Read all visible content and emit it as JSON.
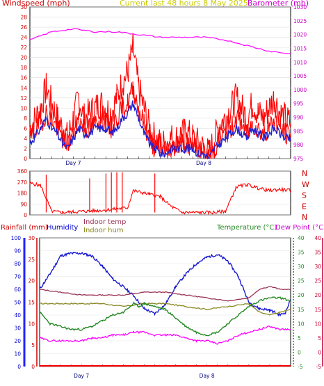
{
  "header": {
    "left_title": "Windspeed (mph)",
    "center_title": "Current last 48 hours 8 May 2025",
    "right_title": "Barometer (mb)"
  },
  "colors": {
    "wind": "#ff0000",
    "gust": "#ff0000",
    "wind_avg": "#2020d0",
    "barometer": "#ff00ff",
    "direction": "#ff0000",
    "humidity": "#1a1ad0",
    "indoor_temp": "#993355",
    "indoor_hum": "#888822",
    "temperature": "#228822",
    "dew_point": "#ff00ff",
    "rainfall": "#ff0000",
    "title": "#cccc00",
    "axis_rain": "#cc0000",
    "axis_humidity": "#0000cc",
    "axis_temp": "#228822",
    "axis_dew": "#cc0033"
  },
  "chart_data": [
    {
      "type": "line",
      "name": "wind",
      "title": "Current last 48 hours 8 May 2025",
      "ylabel_left": "Windspeed (mph)",
      "ylabel_right": "Barometer (mb)",
      "left_ticks": [
        0,
        2,
        4,
        6,
        8,
        10,
        12,
        14,
        16,
        18,
        20,
        22,
        24,
        26,
        28,
        30
      ],
      "right_ticks": [
        975,
        980,
        985,
        990,
        995,
        1000,
        1005,
        1010,
        1015,
        1020,
        1025,
        1030
      ],
      "ylim_left": [
        0,
        30
      ],
      "ylim_right": [
        975,
        1030
      ],
      "x_labels": [
        "Day 7",
        "Day 8"
      ],
      "x_label_positions_hours": [
        8,
        32
      ],
      "x_hours": 48,
      "series": [
        {
          "key": "gust",
          "hours": [
            0,
            2,
            3,
            4,
            5,
            6,
            7,
            8,
            9,
            10,
            11,
            12,
            13,
            14,
            15,
            16,
            17,
            18,
            19,
            20,
            21,
            22,
            23,
            24,
            25,
            26,
            27,
            28,
            29,
            30,
            31,
            32,
            33,
            34,
            35,
            36,
            37,
            38,
            39,
            40,
            41,
            42,
            43,
            44,
            45,
            46,
            47,
            48
          ],
          "values": [
            6,
            10,
            14,
            11,
            8,
            6,
            4,
            8,
            12,
            8,
            9,
            10,
            11,
            10,
            9,
            12,
            15,
            17,
            22,
            14,
            10,
            6,
            4,
            3,
            3,
            4,
            4,
            5,
            5,
            4,
            3,
            2,
            1,
            4,
            7,
            8,
            10,
            12,
            10,
            8,
            11,
            9,
            8,
            10,
            12,
            9,
            8,
            7
          ]
        },
        {
          "key": "wind",
          "hours": [
            0,
            2,
            3,
            4,
            5,
            6,
            7,
            8,
            9,
            10,
            11,
            12,
            13,
            14,
            15,
            16,
            17,
            18,
            19,
            20,
            21,
            22,
            23,
            24,
            25,
            26,
            27,
            28,
            29,
            30,
            31,
            32,
            33,
            34,
            35,
            36,
            37,
            38,
            39,
            40,
            41,
            42,
            43,
            44,
            45,
            46,
            47,
            48
          ],
          "values": [
            4,
            7,
            9,
            8,
            6,
            4,
            3,
            5,
            8,
            6,
            6,
            7,
            8,
            7,
            6,
            8,
            10,
            11,
            14,
            10,
            7,
            4,
            2,
            2,
            2,
            2,
            3,
            3,
            3,
            2,
            2,
            1,
            0,
            2,
            4,
            5,
            6,
            8,
            7,
            5,
            7,
            6,
            5,
            6,
            8,
            6,
            5,
            5
          ]
        },
        {
          "key": "wind_avg",
          "hours": [
            0,
            2,
            3,
            4,
            5,
            6,
            7,
            8,
            9,
            10,
            11,
            12,
            13,
            14,
            15,
            16,
            17,
            18,
            19,
            20,
            21,
            22,
            23,
            24,
            25,
            26,
            27,
            28,
            29,
            30,
            31,
            32,
            33,
            34,
            35,
            36,
            37,
            38,
            39,
            40,
            41,
            42,
            43,
            44,
            45,
            46,
            47,
            48
          ],
          "values": [
            3,
            6,
            8,
            6,
            5,
            3,
            2,
            4,
            6,
            5,
            5,
            6,
            6,
            6,
            5,
            6,
            8,
            9,
            11,
            8,
            5,
            3,
            2,
            1,
            1,
            2,
            2,
            2,
            2,
            2,
            1,
            1,
            0,
            2,
            3,
            4,
            5,
            6,
            5,
            4,
            6,
            5,
            4,
            5,
            6,
            5,
            4,
            4
          ]
        },
        {
          "key": "barometer",
          "axis": "right",
          "hours": [
            0,
            4,
            8,
            12,
            16,
            20,
            24,
            28,
            32,
            36,
            40,
            44,
            48
          ],
          "values": [
            1018,
            1021,
            1022,
            1021,
            1021,
            1020,
            1019,
            1019,
            1019,
            1018,
            1016,
            1014,
            1013
          ]
        }
      ]
    },
    {
      "type": "line",
      "name": "direction",
      "left_ticks": [
        0,
        90,
        180,
        270,
        360
      ],
      "right_ticks": [
        "N",
        "W",
        "S",
        "E",
        "N"
      ],
      "ylim": [
        0,
        360
      ],
      "hours": [
        0,
        2,
        4,
        6,
        8,
        10,
        12,
        14,
        16,
        18,
        19,
        20,
        22,
        24,
        26,
        28,
        30,
        32,
        34,
        36,
        38,
        40,
        42,
        44,
        46,
        48
      ],
      "values": [
        260,
        240,
        30,
        20,
        25,
        30,
        35,
        40,
        50,
        60,
        200,
        190,
        170,
        150,
        70,
        20,
        20,
        20,
        20,
        30,
        230,
        250,
        220,
        200,
        210,
        200
      ],
      "spikes_hours": [
        3,
        11,
        14,
        15,
        16,
        17,
        23
      ],
      "spikes_values": [
        330,
        300,
        340,
        350,
        350,
        350,
        340
      ]
    },
    {
      "type": "line",
      "name": "climate",
      "labels": {
        "rain": "Rainfall (mm)",
        "humidity": "Humidity",
        "indoor_temp": "Indoor temp",
        "indoor_hum": "Indoor hum",
        "temperature": "Temperature (°C)",
        "dew": "Dew Point (°C)"
      },
      "rain_ticks": [
        0,
        5,
        10,
        15,
        20,
        25,
        30
      ],
      "humidity_ticks": [
        0,
        10,
        20,
        30,
        40,
        50,
        60,
        70,
        80,
        90,
        100
      ],
      "temp_ticks": [
        -5,
        0,
        5,
        10,
        15,
        20,
        25,
        30,
        35,
        40
      ],
      "dew_ticks": [
        -5,
        0,
        5,
        10,
        15,
        20,
        25,
        30,
        35,
        40
      ],
      "x_labels": [
        "Day 7",
        "Day 8"
      ],
      "x_label_positions_hours": [
        8,
        32
      ],
      "series": [
        {
          "key": "humidity",
          "axis": "humidity",
          "hours": [
            0,
            2,
            4,
            6,
            8,
            10,
            12,
            14,
            16,
            18,
            20,
            22,
            24,
            26,
            28,
            30,
            32,
            34,
            36,
            38,
            40,
            42,
            44,
            46,
            47,
            48
          ],
          "values": [
            60,
            72,
            86,
            88,
            88,
            86,
            78,
            68,
            62,
            55,
            45,
            41,
            48,
            62,
            72,
            80,
            85,
            87,
            82,
            70,
            50,
            45,
            44,
            40,
            42,
            52
          ]
        },
        {
          "key": "indoor_temp",
          "axis": "temp",
          "hours": [
            0,
            4,
            8,
            12,
            16,
            20,
            24,
            28,
            32,
            36,
            40,
            42,
            44,
            46,
            48
          ],
          "values": [
            22,
            21,
            20,
            20,
            20,
            21,
            21,
            20,
            19,
            18,
            19,
            22,
            23,
            22,
            22
          ]
        },
        {
          "key": "indoor_hum",
          "axis": "temp",
          "hours": [
            0,
            4,
            8,
            12,
            16,
            20,
            24,
            28,
            32,
            36,
            40,
            42,
            44,
            46,
            48
          ],
          "values": [
            17,
            17,
            17,
            17,
            16,
            17,
            17,
            16,
            15,
            16,
            17,
            14,
            13,
            14,
            15
          ]
        },
        {
          "key": "temperature",
          "axis": "temp",
          "hours": [
            0,
            2,
            4,
            6,
            8,
            10,
            12,
            14,
            16,
            18,
            19,
            20,
            22,
            24,
            26,
            28,
            30,
            32,
            34,
            36,
            38,
            40,
            42,
            44,
            46,
            48
          ],
          "values": [
            14,
            10,
            9,
            8,
            8,
            9,
            11,
            13,
            14,
            17,
            16,
            17,
            16,
            15,
            12,
            9,
            7,
            6,
            7,
            10,
            13,
            16,
            18,
            19,
            19,
            18
          ]
        },
        {
          "key": "dew_point",
          "axis": "temp",
          "hours": [
            0,
            2,
            4,
            6,
            8,
            10,
            12,
            14,
            16,
            18,
            20,
            22,
            24,
            26,
            28,
            30,
            32,
            34,
            36,
            38,
            40,
            42,
            44,
            46,
            48
          ],
          "values": [
            5,
            4,
            4,
            4,
            4,
            5,
            5,
            6,
            6,
            7,
            7,
            6,
            6,
            6,
            5,
            4,
            4,
            3,
            4,
            6,
            7,
            8,
            9,
            8,
            8
          ]
        },
        {
          "key": "rainfall",
          "axis": "rain",
          "hours": [
            0,
            48
          ],
          "values": [
            0,
            0
          ]
        }
      ]
    }
  ]
}
